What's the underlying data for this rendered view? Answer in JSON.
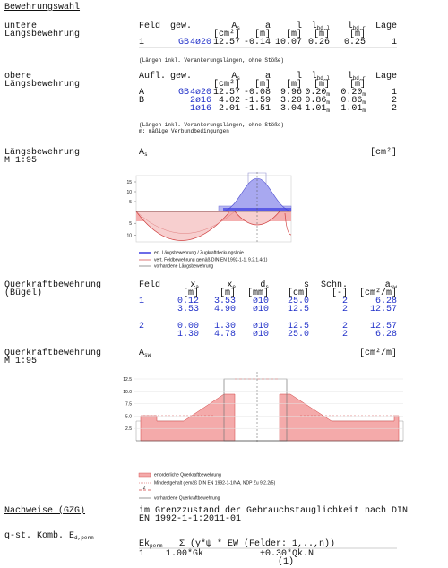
{
  "header": {
    "title": "Bewehrungswahl"
  },
  "lower": {
    "label": [
      "untere",
      "Längsbewehrung"
    ],
    "head": {
      "name": "Feld",
      "bars": "gew.",
      "As": {
        "text": "A",
        "sub": "s"
      },
      "a": "a",
      "l": "l",
      "lbdl": {
        "text": "l",
        "sub": "bd,l"
      },
      "lbdr": {
        "text": "l",
        "sub": "bd,r"
      },
      "lage": "Lage"
    },
    "units": {
      "As": "[cm²]",
      "a": "[m]",
      "l": "[m]",
      "lbdl": "[m]",
      "lbdr": "[m]"
    },
    "rows": [
      {
        "name": "1",
        "prefix": "GB",
        "bars": "4ø20",
        "As": "12.57",
        "a": "-0.14",
        "l": "10.07",
        "lbdl": "0.26",
        "lbdr": "0.25",
        "lage": "1"
      }
    ],
    "notes": [
      "(Längen inkl. Verankerungslängen, ohne Stöße)"
    ]
  },
  "upper": {
    "label": [
      "obere",
      "Längsbewehrung"
    ],
    "head": {
      "name": "Aufl.",
      "bars": "gew.",
      "As": {
        "text": "A",
        "sub": "s"
      },
      "a": "a",
      "l": "l",
      "lbdl": {
        "text": "l",
        "sub": "bd,l"
      },
      "lbdr": {
        "text": "l",
        "sub": "bd,r"
      },
      "lage": "Lage"
    },
    "units": {
      "As": "[cm²]",
      "a": "[m]",
      "l": "[m]",
      "lbdl": "[m]",
      "lbdr": "[m]"
    },
    "rows": [
      {
        "name": "A",
        "prefix": "GB",
        "bars": "4ø20",
        "As": "12.57",
        "a": "-0.08",
        "l": "9.96",
        "lbdl": {
          "text": "0.20",
          "sub": "m"
        },
        "lbdr": {
          "text": "0.20",
          "sub": "m"
        },
        "lage": "1"
      },
      {
        "name": "B",
        "bars": "2ø16",
        "As": "4.02",
        "a": "-1.59",
        "l": "3.20",
        "lbdl": {
          "text": "0.86",
          "sub": "m"
        },
        "lbdr": {
          "text": "0.86",
          "sub": "m"
        },
        "lage": "2"
      },
      {
        "bars": "1ø16",
        "As": "2.01",
        "a": "-1.51",
        "l": "3.04",
        "lbdl": {
          "text": "1.01",
          "sub": "m"
        },
        "lbdr": {
          "text": "1.01",
          "sub": "m"
        },
        "lage": "2"
      }
    ],
    "notes": [
      "(Längen inkl. Verankerungslängen, ohne Stöße)",
      "m: mäßige Verbundbedingungen"
    ]
  },
  "as_chart": {
    "label": [
      "Längsbewehrung",
      "M 1:95"
    ],
    "quantity": {
      "text": "A",
      "sub": "s"
    },
    "unit": "[cm²]",
    "yticks_top": [
      15,
      10,
      5
    ],
    "yticks_bottom": [
      5,
      10
    ],
    "legend": [
      "erf. Längsbewehrung / Zugkraftdeckungslinie",
      "vert. Feldbewehrung gemäß DIN EN 1992-1-1, 9.2.1.4(1)",
      "vorhandene Längsbewehrung"
    ]
  },
  "shear": {
    "label": [
      "Querkraftbewehrung",
      "(Bügel)"
    ],
    "head": {
      "field": "Feld",
      "xa": {
        "text": "x",
        "sub": "a"
      },
      "xe": {
        "text": "x",
        "sub": "e"
      },
      "ds": {
        "text": "d",
        "sub": "s"
      },
      "s": "s",
      "cuts": "Schn.",
      "asw": {
        "text": "a",
        "sub": "sw"
      }
    },
    "units": {
      "xa": "[m]",
      "xe": "[m]",
      "ds": "[mm]",
      "s": "[cm]",
      "cuts": "[-]",
      "asw": "[cm²/m]"
    },
    "rows": [
      {
        "field": "1",
        "xa": "0.12",
        "xe": "3.53",
        "ds": "ø10",
        "s": "25.0",
        "cuts": "2",
        "asw": "6.28"
      },
      {
        "xa": "3.53",
        "xe": "4.90",
        "ds": "ø10",
        "s": "12.5",
        "cuts": "2",
        "asw": "12.57"
      },
      {
        "field": "2",
        "xa": "0.00",
        "xe": "1.30",
        "ds": "ø10",
        "s": "12.5",
        "cuts": "2",
        "asw": "12.57"
      },
      {
        "xa": "1.30",
        "xe": "4.78",
        "ds": "ø10",
        "s": "25.0",
        "cuts": "2",
        "asw": "6.28"
      }
    ]
  },
  "asw_chart": {
    "label": [
      "Querkraftbewehrung",
      "M 1:95"
    ],
    "quantity": {
      "text": "A",
      "sub": "sw"
    },
    "unit": "[cm²/m]",
    "yticks": [
      12.5,
      {
        "value": 10,
        "label": "10.0"
      },
      7.5,
      {
        "value": 5,
        "label": "5.0"
      },
      2.5
    ],
    "legend": [
      "erforderliche Querkraftbewehrung",
      "Mindestgehalt gemäß DIN EN 1992-1-1/NA, NDP Zu 9.2.2(5)",
      "2",
      "vorhandene Querkraftbewehrung"
    ]
  },
  "checks": {
    "title": "Nachweise (GZG)",
    "text": [
      "im Grenzzustand der Gebrauchstauglichkeit nach DIN",
      "EN 1992-1-1:2011-01"
    ],
    "combo_label": {
      "text": "q-st. Komb. E",
      "sub": "d,perm"
    },
    "ek": {
      "text": "Ek",
      "sub": "perm"
    },
    "sum": "Σ (γ*ψ * EW (Felder: 1,..,n))",
    "row": [
      "1",
      "1.00*Gk",
      "+0.30*Qk.N"
    ],
    "ref": "(1)"
  }
}
